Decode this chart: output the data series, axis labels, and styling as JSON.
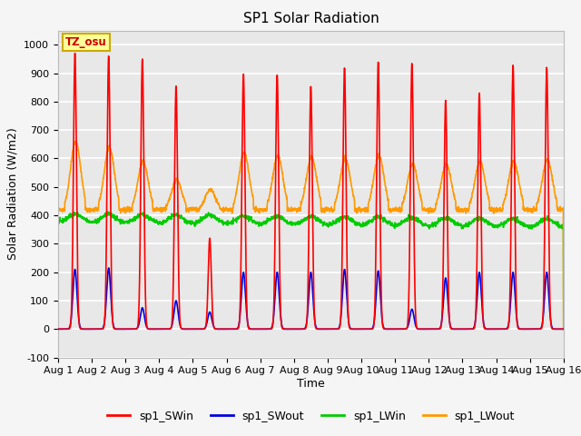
{
  "title": "SP1 Solar Radiation",
  "xlabel": "Time",
  "ylabel": "Solar Radiation (W/m2)",
  "ylim": [
    -100,
    1050
  ],
  "xlim": [
    0,
    15
  ],
  "xtick_labels": [
    "Aug 1",
    "Aug 2",
    "Aug 3",
    "Aug 4",
    "Aug 5",
    "Aug 6",
    "Aug 7",
    "Aug 8",
    "Aug 9",
    "Aug 10",
    "Aug 11",
    "Aug 12",
    "Aug 13",
    "Aug 14",
    "Aug 15",
    "Aug 16"
  ],
  "colors": {
    "sp1_SWin": "#ff0000",
    "sp1_SWout": "#0000dd",
    "sp1_LWin": "#00cc00",
    "sp1_LWout": "#ff9900"
  },
  "annotation_text": "TZ_osu",
  "annotation_color": "#cc0000",
  "annotation_bg": "#ffff99",
  "background_color": "#e8e8e8",
  "grid_color": "#ffffff",
  "title_fontsize": 11,
  "axis_label_fontsize": 9,
  "tick_fontsize": 8,
  "legend_fontsize": 9,
  "linewidth": 1.2,
  "days": 15,
  "points_per_day": 144,
  "SWin_peaks": [
    970,
    960,
    950,
    855,
    320,
    898,
    895,
    855,
    920,
    940,
    935,
    805,
    830,
    928,
    920
  ],
  "SWout_peaks": [
    210,
    215,
    75,
    100,
    60,
    200,
    200,
    200,
    210,
    205,
    70,
    180,
    200,
    200,
    200
  ],
  "LWout_night": 420,
  "LWout_day_peaks": [
    660,
    640,
    590,
    525,
    490,
    620,
    610,
    605,
    600,
    610,
    580,
    580,
    590,
    590,
    595
  ],
  "LWin_base": 375,
  "LWin_day_add": 30,
  "cloudy_days": [
    4
  ],
  "partial_days": [
    3,
    5
  ]
}
